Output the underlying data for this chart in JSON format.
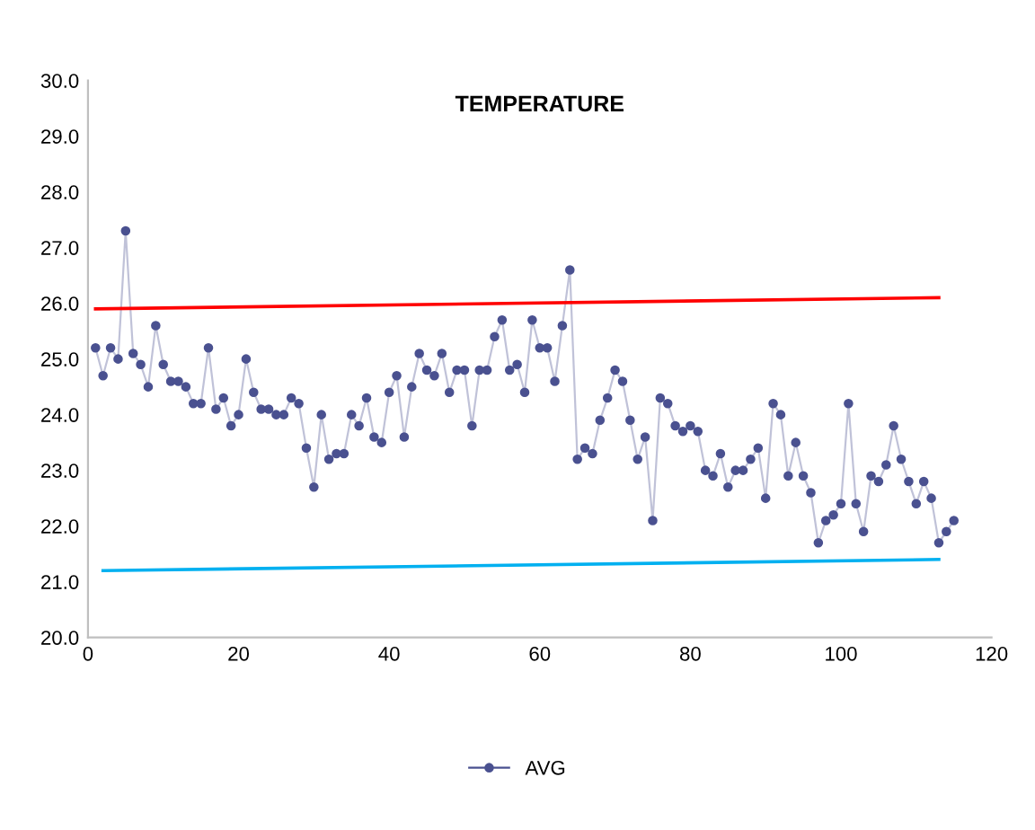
{
  "chart_data": {
    "type": "line",
    "title": "TEMPERATURE",
    "xlim": [
      0,
      120
    ],
    "xticks": [
      0,
      20,
      40,
      60,
      80,
      100,
      120
    ],
    "ylim": [
      20,
      30
    ],
    "yticks": [
      {
        "value": 20,
        "label": "20.0"
      },
      {
        "value": 21,
        "label": "21.0"
      },
      {
        "value": 22,
        "label": "22.0"
      },
      {
        "value": 23,
        "label": "23.0"
      },
      {
        "value": 24,
        "label": "24.0"
      },
      {
        "value": 25,
        "label": "25.0"
      },
      {
        "value": 26,
        "label": "26.0"
      },
      {
        "value": 27,
        "label": "27.0"
      },
      {
        "value": 28,
        "label": "28.0"
      },
      {
        "value": 29,
        "label": "29.0"
      },
      {
        "value": 30,
        "label": "30.0"
      }
    ],
    "grid": false,
    "legend": "bottom",
    "marker": "circle",
    "line_style": "solid",
    "series": [
      {
        "name": "AVG",
        "color": "#4a5190",
        "x": [
          1,
          2,
          3,
          4,
          5,
          6,
          7,
          8,
          9,
          10,
          11,
          12,
          13,
          14,
          15,
          16,
          17,
          18,
          19,
          20,
          21,
          22,
          23,
          24,
          25,
          26,
          27,
          28,
          29,
          30,
          31,
          32,
          33,
          34,
          35,
          36,
          37,
          38,
          39,
          40,
          41,
          42,
          43,
          44,
          45,
          46,
          47,
          48,
          49,
          50,
          51,
          52,
          53,
          54,
          55,
          56,
          57,
          58,
          59,
          60,
          61,
          62,
          63,
          64,
          65,
          66,
          67,
          68,
          69,
          70,
          71,
          72,
          73,
          74,
          75,
          76,
          77,
          78,
          79,
          80,
          81,
          82,
          83,
          84,
          85,
          86,
          87,
          88,
          89,
          90,
          91,
          92,
          93,
          94,
          95,
          96,
          97,
          98,
          99,
          100,
          101,
          102,
          103,
          104,
          105,
          106,
          107,
          108,
          109,
          110,
          111,
          112,
          113,
          114,
          115
        ],
        "values": [
          25.2,
          24.7,
          25.2,
          25.0,
          27.3,
          25.1,
          24.9,
          24.5,
          25.6,
          24.9,
          24.6,
          24.6,
          24.5,
          24.2,
          24.2,
          25.2,
          24.1,
          24.3,
          23.8,
          24.0,
          25.0,
          24.4,
          24.1,
          24.1,
          24.0,
          24.0,
          24.3,
          24.2,
          23.4,
          22.7,
          24.0,
          23.2,
          23.3,
          23.3,
          24.0,
          23.8,
          24.3,
          23.6,
          23.5,
          24.4,
          24.7,
          23.6,
          24.5,
          25.1,
          24.8,
          24.7,
          25.1,
          24.4,
          24.8,
          24.8,
          23.8,
          24.8,
          24.8,
          25.4,
          25.7,
          24.8,
          24.9,
          24.4,
          25.7,
          25.2,
          25.2,
          24.6,
          25.6,
          26.6,
          23.2,
          23.4,
          23.3,
          23.9,
          24.3,
          24.8,
          24.6,
          23.9,
          23.2,
          23.6,
          22.1,
          24.3,
          24.2,
          23.8,
          23.7,
          23.8,
          23.7,
          23.0,
          22.9,
          23.3,
          22.7,
          23.0,
          23.0,
          23.2,
          23.4,
          22.5,
          24.2,
          24.0,
          22.9,
          23.5,
          22.9,
          22.6,
          21.7,
          22.1,
          22.2,
          22.4,
          24.2,
          22.4,
          21.9,
          22.9,
          22.8,
          23.1,
          23.8,
          23.2,
          22.8,
          22.4,
          22.8,
          22.5,
          21.7,
          21.9,
          22.1
        ]
      },
      {
        "type": "line",
        "color": "#ff0000",
        "marker": "none",
        "x": [
          1,
          113
        ],
        "values": [
          25.9,
          26.1
        ]
      },
      {
        "type": "line",
        "color": "#00b0f0",
        "marker": "none",
        "x": [
          2,
          113
        ],
        "values": [
          21.2,
          21.4
        ]
      }
    ]
  }
}
